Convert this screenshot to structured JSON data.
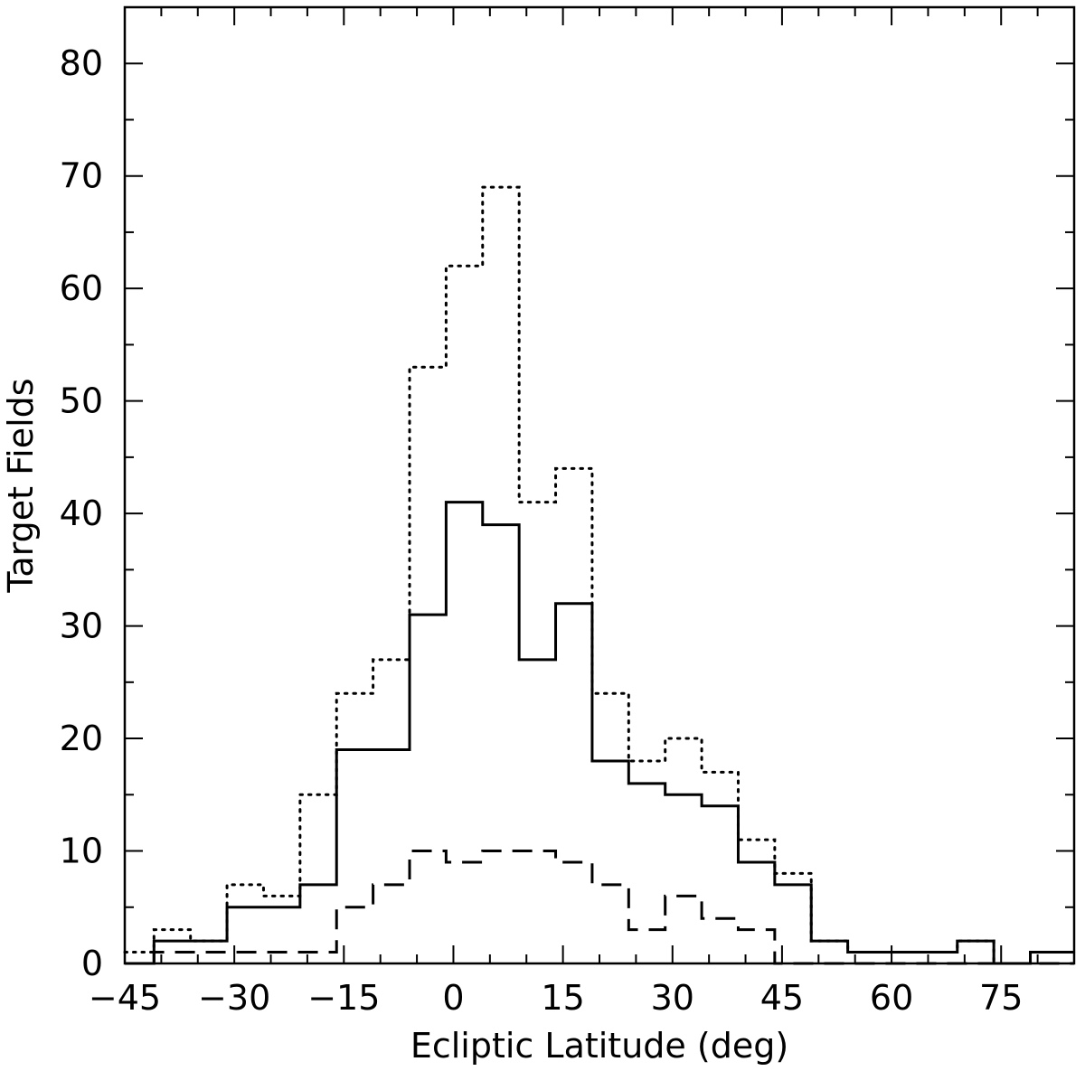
{
  "chart_data": {
    "type": "histogram",
    "title": "",
    "xlabel": "Ecliptic Latitude (deg)",
    "ylabel": "Target Fields",
    "xlim": [
      -45,
      85
    ],
    "ylim": [
      0,
      85
    ],
    "x_ticks": [
      -45,
      -30,
      -15,
      0,
      15,
      30,
      45,
      60,
      75
    ],
    "x_tick_labels": [
      "−45",
      "−30",
      "−15",
      "0",
      "15",
      "30",
      "45",
      "60",
      "75"
    ],
    "y_ticks": [
      0,
      10,
      20,
      30,
      40,
      50,
      60,
      70,
      80
    ],
    "y_tick_labels": [
      "0",
      "10",
      "20",
      "30",
      "40",
      "50",
      "60",
      "70",
      "80"
    ],
    "bin_edges": [
      -45,
      -41,
      -36,
      -31,
      -26,
      -21,
      -16,
      -11,
      -6,
      -1,
      4,
      9,
      14,
      19,
      24,
      29,
      34,
      39,
      44,
      49,
      54,
      59,
      64,
      69,
      74,
      79,
      85
    ],
    "series": [
      {
        "style": "dotted",
        "values": [
          1,
          3,
          2,
          7,
          6,
          15,
          24,
          27,
          53,
          62,
          69,
          41,
          44,
          24,
          18,
          20,
          17,
          11,
          8,
          2,
          1,
          1,
          1,
          2,
          0,
          1
        ]
      },
      {
        "style": "solid",
        "values": [
          0,
          2,
          2,
          5,
          5,
          7,
          19,
          19,
          31,
          41,
          39,
          27,
          32,
          18,
          16,
          15,
          14,
          9,
          7,
          2,
          1,
          1,
          1,
          2,
          0,
          1
        ]
      },
      {
        "style": "dashed",
        "values": [
          0,
          1,
          1,
          1,
          1,
          1,
          5,
          7,
          10,
          9,
          10,
          10,
          9,
          7,
          3,
          6,
          4,
          3,
          0,
          0,
          0,
          0,
          0,
          0,
          0,
          0
        ]
      }
    ],
    "grid": false,
    "legend": "none",
    "colors": {
      "line": "#000000",
      "background": "#ffffff"
    }
  }
}
